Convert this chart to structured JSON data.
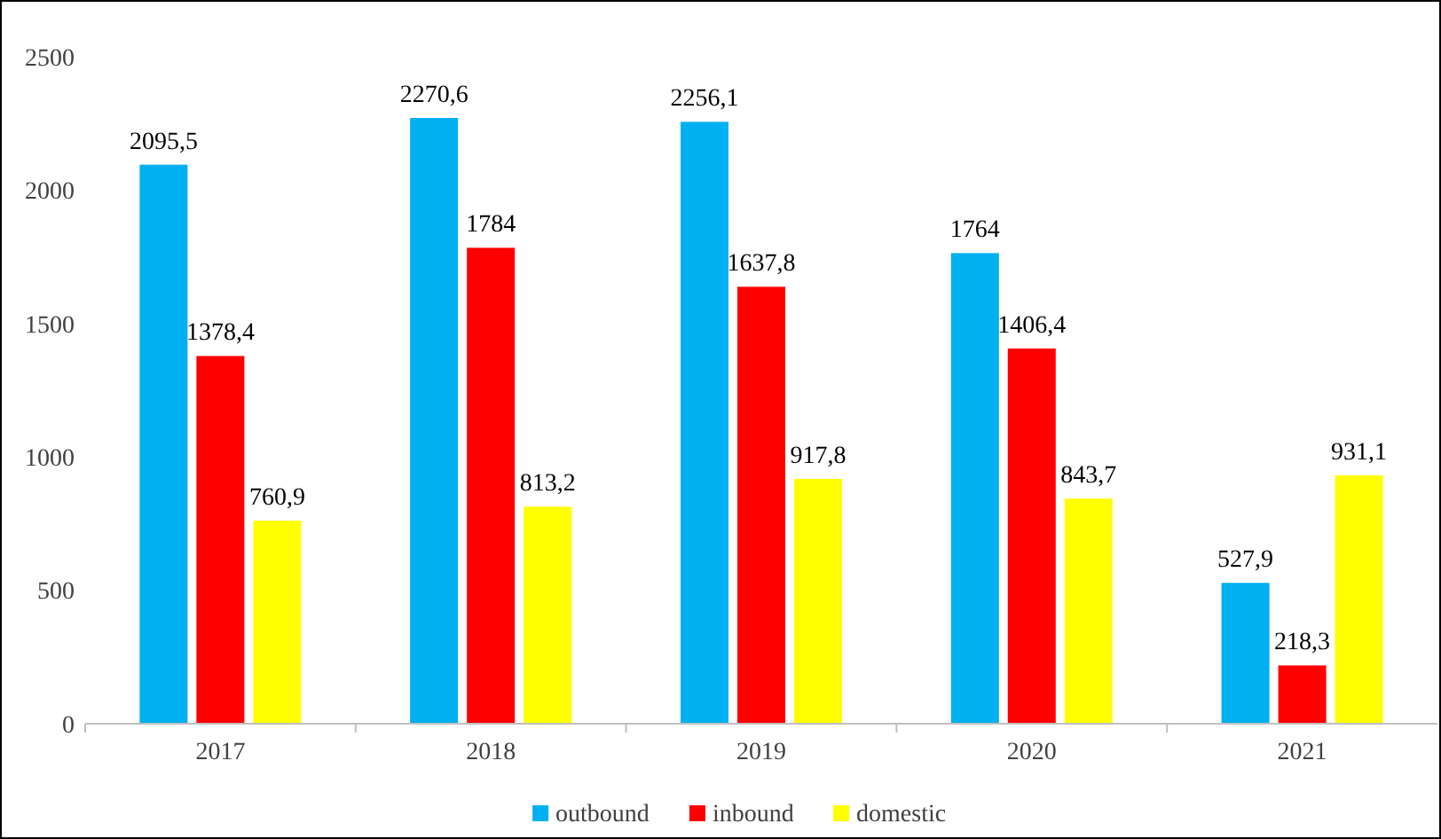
{
  "chart_data": {
    "type": "bar",
    "categories": [
      "2017",
      "2018",
      "2019",
      "2020",
      "2021"
    ],
    "ylim": [
      0,
      2500
    ],
    "yticks": [
      0,
      500,
      1000,
      1500,
      2000,
      2500
    ],
    "grid": false,
    "legend": "bottom",
    "series": [
      {
        "name": "outbound",
        "color": "#00b0f0",
        "values": [
          2095.5,
          2270.6,
          2256.1,
          1764,
          527.9
        ],
        "value_labels": [
          "2095,5",
          "2270,6",
          "2256,1",
          "1764",
          "527,9"
        ]
      },
      {
        "name": "inbound",
        "color": "#ff0000",
        "values": [
          1378.4,
          1784,
          1637.8,
          1406.4,
          218.3
        ],
        "value_labels": [
          "1378,4",
          "1784",
          "1637,8",
          "1406,4",
          "218,3"
        ]
      },
      {
        "name": "domestic",
        "color": "#ffff00",
        "values": [
          760.9,
          813.2,
          917.8,
          843.7,
          931.1
        ],
        "value_labels": [
          "760,9",
          "813,2",
          "917,8",
          "843,7",
          "931,1"
        ]
      }
    ]
  }
}
